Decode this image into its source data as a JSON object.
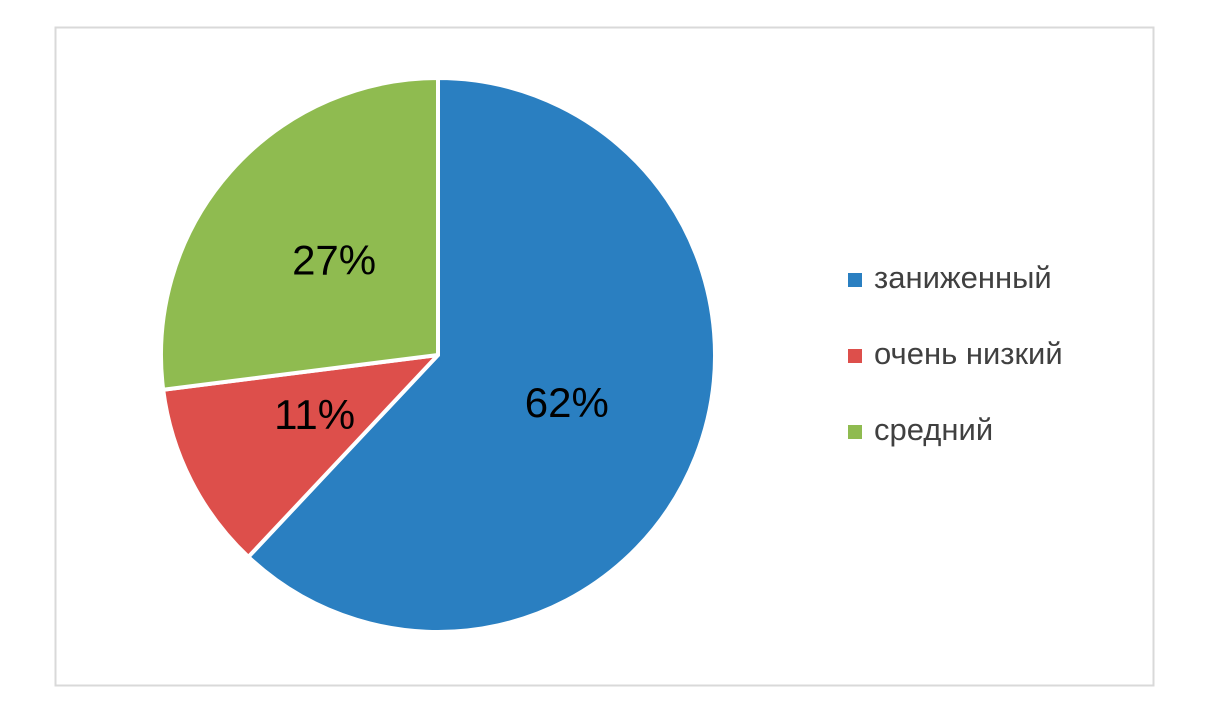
{
  "chart_data": {
    "type": "pie",
    "categories": [
      "заниженный",
      "очень низкий",
      "средний"
    ],
    "values": [
      62,
      11,
      27
    ],
    "value_labels": [
      "62%",
      "11%",
      "27%"
    ],
    "colors": [
      "#2a7fc1",
      "#dd4f4b",
      "#8fbb50"
    ],
    "legend": "right"
  }
}
